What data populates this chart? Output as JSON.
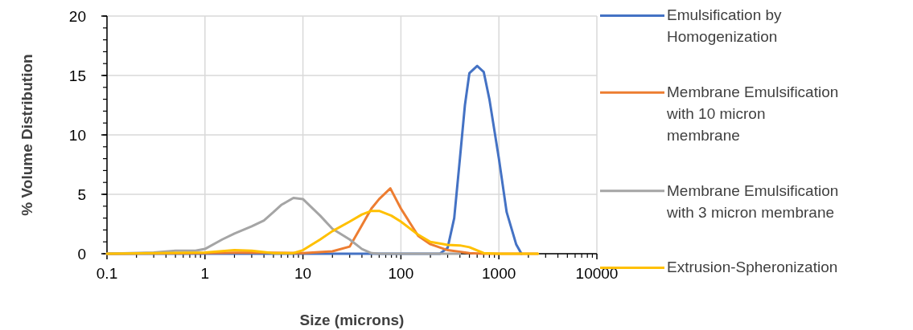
{
  "chart_data": {
    "type": "line",
    "xlabel": "Size (microns)",
    "ylabel": "% Volume Distribution",
    "log": "x",
    "xlim": [
      0.1,
      10000
    ],
    "xticks": [
      0.1,
      1,
      10,
      100,
      1000,
      10000
    ],
    "ylim": [
      0,
      20
    ],
    "yticks": [
      0,
      5,
      10,
      15,
      20
    ],
    "grid": true,
    "legend": "right",
    "marker": "none",
    "line_style": "solid",
    "series": [
      {
        "name": "Emulsification by Homogenization",
        "color": "#4472c4",
        "x": [
          0.1,
          1,
          10,
          100,
          250,
          300,
          350,
          400,
          450,
          500,
          600,
          700,
          800,
          1000,
          1200,
          1500,
          1700
        ],
        "values": [
          0,
          0,
          0,
          0,
          0,
          0.5,
          3,
          8,
          12.5,
          15.2,
          15.8,
          15.3,
          13,
          8,
          3.5,
          0.8,
          0
        ]
      },
      {
        "name": "Membrane Emulsification with 10 micron membrane",
        "color": "#ed7d31",
        "x": [
          0.1,
          1,
          3,
          10,
          20,
          30,
          40,
          50,
          60,
          78,
          100,
          150,
          200,
          300,
          500,
          700,
          2500
        ],
        "values": [
          0,
          0.05,
          0.1,
          0.05,
          0.2,
          0.6,
          2.4,
          3.8,
          4.6,
          5.5,
          3.8,
          1.5,
          0.8,
          0.3,
          0.05,
          0,
          0
        ]
      },
      {
        "name": "Membrane Emulsification with 3 micron membrane",
        "color": "#a5a5a5",
        "x": [
          0.1,
          0.3,
          0.5,
          0.8,
          1,
          1.5,
          2,
          3,
          4,
          5,
          6,
          8,
          10,
          15,
          20,
          30,
          40,
          50,
          60,
          300,
          400
        ],
        "values": [
          0,
          0.1,
          0.25,
          0.25,
          0.4,
          1.2,
          1.7,
          2.3,
          2.8,
          3.5,
          4.1,
          4.7,
          4.6,
          3.2,
          2.1,
          1.2,
          0.4,
          0.05,
          0,
          0,
          0
        ]
      },
      {
        "name": "Extrusion-Spheronization",
        "color": "#ffc000",
        "x": [
          0.1,
          1,
          2,
          3,
          5,
          8,
          10,
          15,
          20,
          30,
          40,
          50,
          60,
          80,
          100,
          150,
          200,
          300,
          400,
          500,
          700,
          1000,
          2500
        ],
        "values": [
          0,
          0.1,
          0.3,
          0.25,
          0.05,
          0.05,
          0.3,
          1.2,
          1.9,
          2.7,
          3.3,
          3.6,
          3.6,
          3.2,
          2.7,
          1.6,
          1,
          0.75,
          0.7,
          0.55,
          0.05,
          0,
          0
        ]
      }
    ]
  }
}
